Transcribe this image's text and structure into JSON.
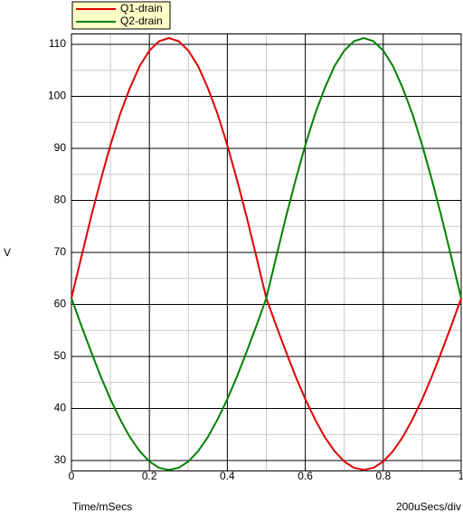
{
  "chart_data": {
    "type": "line",
    "xlabel": "Time/mSecs",
    "ylabel": "V",
    "annotation": "200uSecs/div",
    "x": [
      0,
      0.025,
      0.05,
      0.075,
      0.1,
      0.125,
      0.15,
      0.175,
      0.2,
      0.225,
      0.25,
      0.275,
      0.3,
      0.325,
      0.35,
      0.375,
      0.4,
      0.425,
      0.45,
      0.475,
      0.5,
      0.525,
      0.55,
      0.575,
      0.6,
      0.625,
      0.65,
      0.675,
      0.7,
      0.725,
      0.75,
      0.775,
      0.8,
      0.825,
      0.85,
      0.875,
      0.9,
      0.925,
      0.95,
      0.975,
      1
    ],
    "series": [
      {
        "name": "Q1-drain",
        "color": "#e00000",
        "values": [
          61.2,
          69.0,
          76.7,
          83.9,
          90.6,
          96.6,
          101.6,
          105.8,
          108.8,
          110.6,
          111.2,
          110.6,
          108.8,
          105.8,
          101.6,
          96.6,
          90.6,
          83.9,
          76.7,
          69.0,
          61.2,
          56.0,
          51.0,
          46.2,
          41.8,
          37.9,
          34.5,
          31.8,
          29.8,
          28.6,
          28.2,
          28.6,
          29.8,
          31.8,
          34.5,
          37.9,
          41.8,
          46.2,
          51.0,
          56.0,
          61.2
        ]
      },
      {
        "name": "Q2-drain",
        "color": "#008000",
        "values": [
          61.2,
          56.0,
          51.0,
          46.2,
          41.8,
          37.9,
          34.5,
          31.8,
          29.8,
          28.6,
          28.2,
          28.6,
          29.8,
          31.8,
          34.5,
          37.9,
          41.8,
          46.2,
          51.0,
          56.0,
          61.2,
          69.0,
          76.7,
          83.9,
          90.6,
          96.6,
          101.6,
          105.8,
          108.8,
          110.6,
          111.2,
          110.6,
          108.8,
          105.8,
          101.6,
          96.6,
          90.6,
          83.9,
          76.7,
          69.0,
          61.2
        ]
      }
    ],
    "xlim": [
      0,
      1
    ],
    "ylim": [
      28,
      112
    ],
    "xticks": [
      0,
      0.2,
      0.4,
      0.6,
      0.8,
      1
    ],
    "yticks": [
      30,
      40,
      50,
      60,
      70,
      80,
      90,
      100,
      110
    ],
    "minor_xticks": [
      0.1,
      0.3,
      0.5,
      0.7,
      0.9
    ],
    "minor_yticks": [
      35,
      45,
      55,
      65,
      75,
      85,
      95,
      105
    ],
    "grid": true,
    "legend": "top-left"
  }
}
